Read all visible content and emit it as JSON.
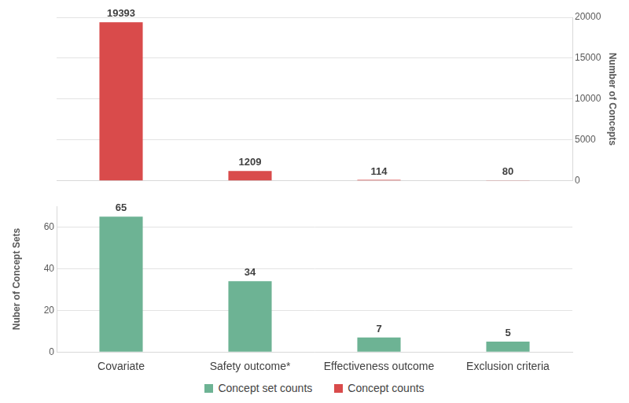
{
  "chart_data": {
    "type": "bar",
    "categories": [
      "Covariate",
      "Safety outcome*",
      "Effectiveness outcome",
      "Exclusion criteria"
    ],
    "series": [
      {
        "name": "Concept set counts",
        "color": "#6db394",
        "values": [
          65,
          34,
          7,
          5
        ]
      },
      {
        "name": "Concept counts",
        "color": "#d94b4b",
        "values": [
          19393,
          1209,
          114,
          80
        ],
        "axis": "y2"
      }
    ],
    "y_label": "Nuber of Concept Sets",
    "y2_label": "Number of Concepts",
    "ylim": [
      0,
      70
    ],
    "yticks": [
      0,
      20,
      40,
      60
    ],
    "y2lim": [
      0,
      20000
    ],
    "y2ticks": [
      0,
      5000,
      10000,
      15000,
      20000
    ],
    "grid": true,
    "data_labels": true,
    "legend": "bottom"
  }
}
